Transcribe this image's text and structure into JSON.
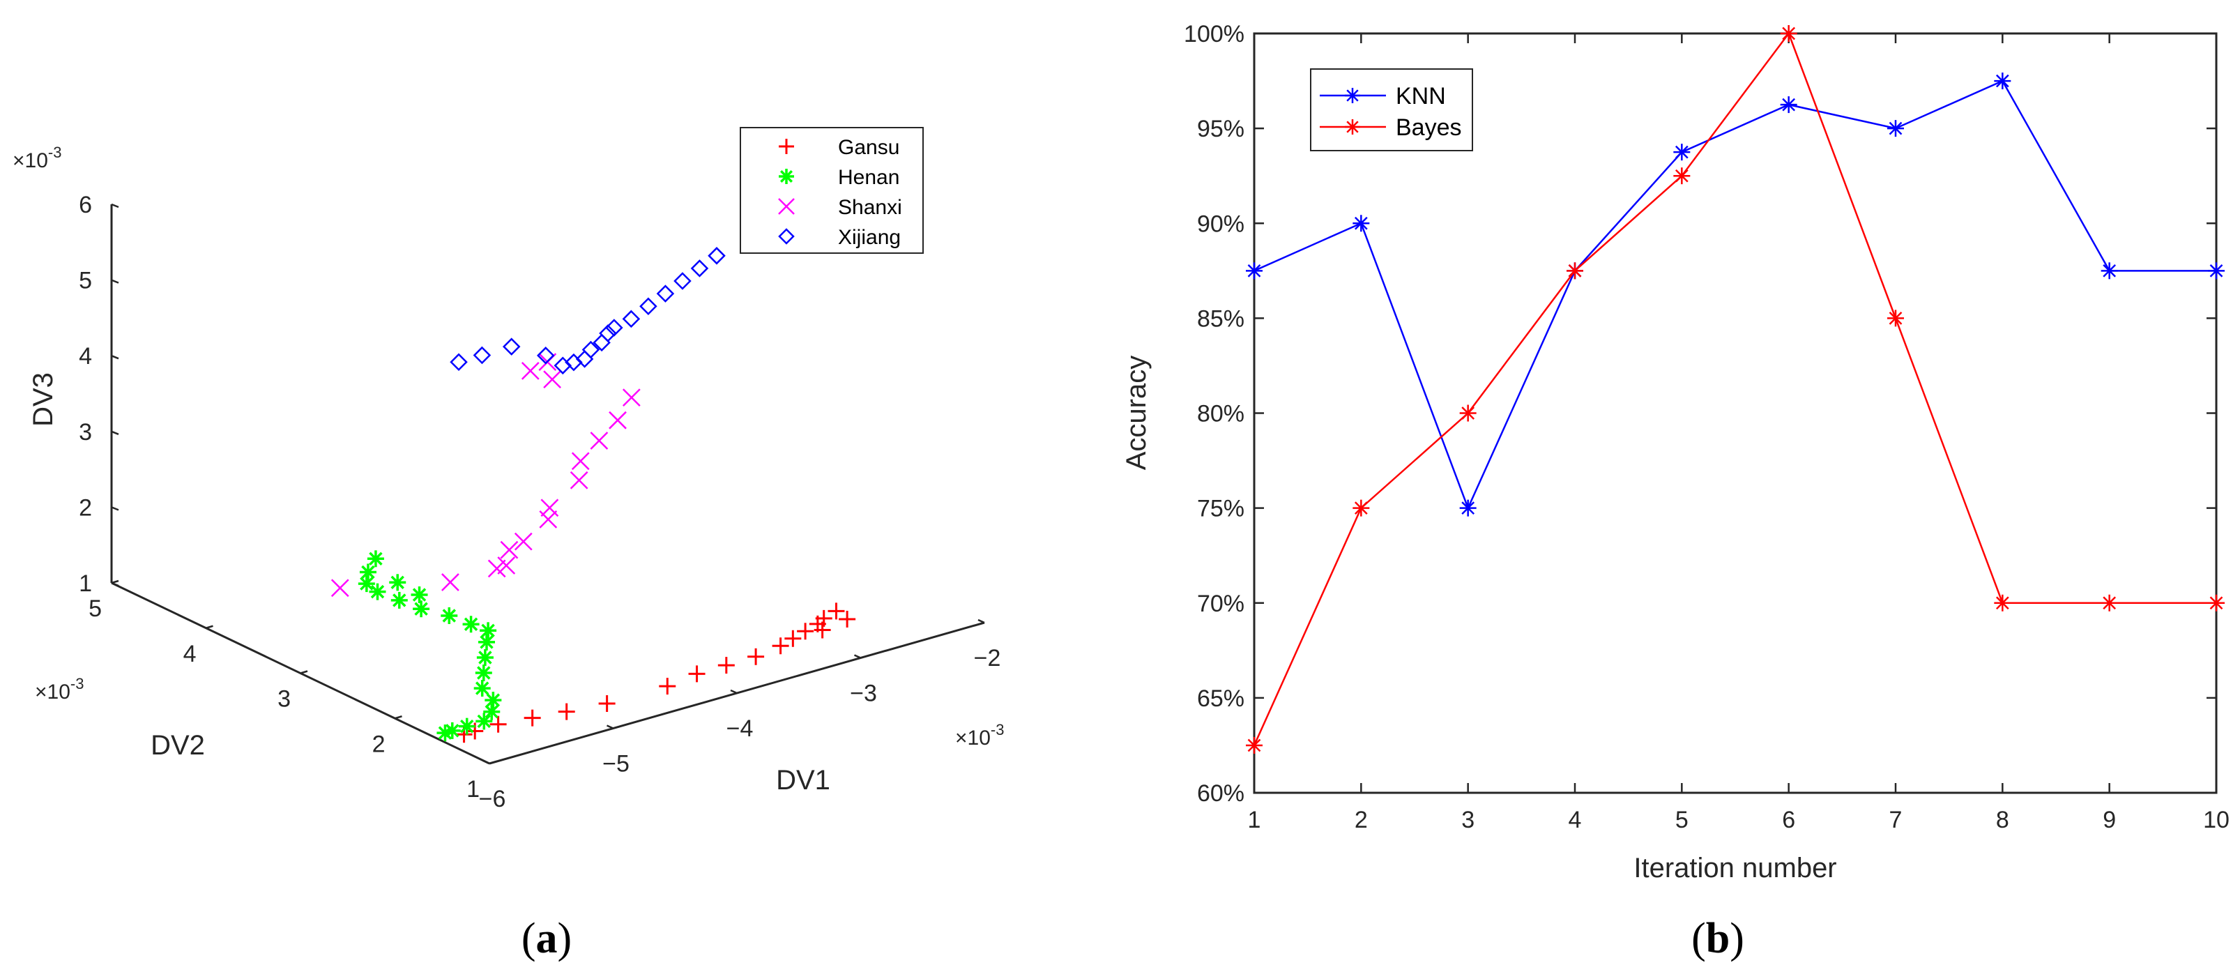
{
  "chart_data": [
    {
      "type": "scatter",
      "panel_label": "a",
      "dimensions": 3,
      "xlabel": "DV1",
      "ylabel": "DV2",
      "zlabel": "DV3",
      "x_multiplier": "×10",
      "y_multiplier": "×10",
      "z_multiplier": "×10",
      "multiplier_exp": "-3",
      "xlim": [
        -6,
        -2
      ],
      "ylim": [
        1,
        5
      ],
      "zlim": [
        1,
        6
      ],
      "x_ticks": [
        "−6",
        "−5",
        "−4",
        "−3",
        "−2"
      ],
      "y_ticks": [
        "1",
        "2",
        "3",
        "4",
        "5"
      ],
      "z_ticks": [
        "1",
        "2",
        "3",
        "4",
        "5",
        "6"
      ],
      "legend_position": "top-right",
      "series": [
        {
          "name": "Gansu",
          "marker": "+",
          "color": "#ff0000",
          "points": [
            [
              -5.9,
              1.4,
              1.1
            ],
            [
              -5.85,
              1.35,
              1.15
            ],
            [
              -5.7,
              1.3,
              1.2
            ],
            [
              -5.5,
              1.2,
              1.25
            ],
            [
              -5.3,
              1.1,
              1.3
            ],
            [
              -5.05,
              1.0,
              1.35
            ],
            [
              -4.6,
              0.95,
              1.4
            ],
            [
              -4.4,
              0.9,
              1.5
            ],
            [
              -4.2,
              0.85,
              1.55
            ],
            [
              -4.0,
              0.8,
              1.6
            ],
            [
              -3.8,
              0.8,
              1.65
            ],
            [
              -3.7,
              0.8,
              1.7
            ],
            [
              -3.6,
              0.8,
              1.75
            ],
            [
              -3.5,
              0.8,
              1.8
            ],
            [
              -3.45,
              0.8,
              1.85
            ],
            [
              -3.35,
              0.8,
              1.9
            ],
            [
              -3.5,
              0.75,
              1.75
            ],
            [
              -3.3,
              0.75,
              1.8
            ]
          ]
        },
        {
          "name": "Henan",
          "marker": "*",
          "color": "#00ff00",
          "points": [
            [
              -5.9,
              1.6,
              1.0
            ],
            [
              -5.88,
              1.55,
              1.05
            ],
            [
              -5.8,
              1.5,
              1.1
            ],
            [
              -5.7,
              1.45,
              1.15
            ],
            [
              -5.6,
              1.5,
              1.2
            ],
            [
              -5.55,
              1.55,
              1.3
            ],
            [
              -5.6,
              1.6,
              1.45
            ],
            [
              -5.55,
              1.65,
              1.6
            ],
            [
              -5.5,
              1.7,
              1.75
            ],
            [
              -5.45,
              1.75,
              1.9
            ],
            [
              -5.4,
              1.8,
              2.0
            ],
            [
              -5.5,
              1.85,
              2.1
            ],
            [
              -5.6,
              1.95,
              2.2
            ],
            [
              -5.75,
              2.05,
              2.3
            ],
            [
              -5.85,
              2.15,
              2.4
            ],
            [
              -5.95,
              2.25,
              2.5
            ],
            [
              -6.0,
              2.3,
              2.6
            ],
            [
              -5.95,
              2.35,
              2.7
            ],
            [
              -5.85,
              2.4,
              2.8
            ],
            [
              -5.75,
              2.3,
              2.5
            ],
            [
              -5.65,
              2.2,
              2.35
            ]
          ]
        },
        {
          "name": "Shanxi",
          "marker": "x",
          "color": "#ff00ff",
          "points": [
            [
              -6.1,
              2.45,
              2.5
            ],
            [
              -5.4,
              2.2,
              2.4
            ],
            [
              -5.1,
              2.1,
              2.5
            ],
            [
              -5.1,
              2.0,
              2.6
            ],
            [
              -5.0,
              2.1,
              2.7
            ],
            [
              -5.0,
              1.95,
              2.9
            ],
            [
              -4.8,
              1.95,
              3.1
            ],
            [
              -4.75,
              2.0,
              3.2
            ],
            [
              -4.55,
              1.95,
              3.5
            ],
            [
              -4.5,
              2.0,
              3.7
            ],
            [
              -4.35,
              2.0,
              3.9
            ],
            [
              -4.2,
              2.0,
              4.1
            ],
            [
              -4.05,
              2.05,
              4.3
            ],
            [
              -4.5,
              2.3,
              4.6
            ],
            [
              -4.6,
              2.4,
              4.7
            ],
            [
              -4.5,
              2.35,
              4.8
            ]
          ]
        },
        {
          "name": "Xijiang",
          "marker": "diamond",
          "color": "#0000ff",
          "points": [
            [
              -4.95,
              2.7,
              4.8
            ],
            [
              -4.8,
              2.65,
              4.85
            ],
            [
              -4.6,
              2.6,
              4.9
            ],
            [
              -4.4,
              2.5,
              4.75
            ],
            [
              -4.3,
              2.45,
              4.6
            ],
            [
              -4.25,
              2.4,
              4.65
            ],
            [
              -4.2,
              2.35,
              4.7
            ],
            [
              -4.15,
              2.35,
              4.8
            ],
            [
              -4.1,
              2.3,
              4.9
            ],
            [
              -4.05,
              2.3,
              5.0
            ],
            [
              -4.0,
              2.3,
              5.05
            ],
            [
              -3.9,
              2.25,
              5.15
            ],
            [
              -3.8,
              2.2,
              5.3
            ],
            [
              -3.7,
              2.15,
              5.45
            ],
            [
              -3.6,
              2.1,
              5.6
            ],
            [
              -3.5,
              2.05,
              5.75
            ],
            [
              -3.4,
              2.0,
              5.9
            ]
          ]
        }
      ]
    },
    {
      "type": "line",
      "panel_label": "b",
      "xlabel": "Iteration number",
      "ylabel": "Accuracy",
      "x": [
        1,
        2,
        3,
        4,
        5,
        6,
        7,
        8,
        9,
        10
      ],
      "xlim": [
        1,
        10
      ],
      "ylim": [
        60,
        100
      ],
      "x_ticks": [
        "1",
        "2",
        "3",
        "4",
        "5",
        "6",
        "7",
        "8",
        "9",
        "10"
      ],
      "y_ticks": [
        "60%",
        "65%",
        "70%",
        "75%",
        "80%",
        "85%",
        "90%",
        "95%",
        "100%"
      ],
      "legend_position": "top-left",
      "series": [
        {
          "name": "KNN",
          "color": "#0000ff",
          "marker": "*",
          "values": [
            87.5,
            90,
            75,
            87.5,
            93.75,
            96.25,
            95,
            97.5,
            87.5,
            87.5
          ]
        },
        {
          "name": "Bayes",
          "color": "#ff0000",
          "marker": "*",
          "values": [
            62.5,
            75,
            80,
            87.5,
            92.5,
            100,
            85,
            70,
            70,
            70
          ]
        }
      ]
    }
  ],
  "captions": {
    "a": {
      "open": "(",
      "letter": "a",
      "close": ")"
    },
    "b": {
      "open": "(",
      "letter": "b",
      "close": ")"
    }
  }
}
